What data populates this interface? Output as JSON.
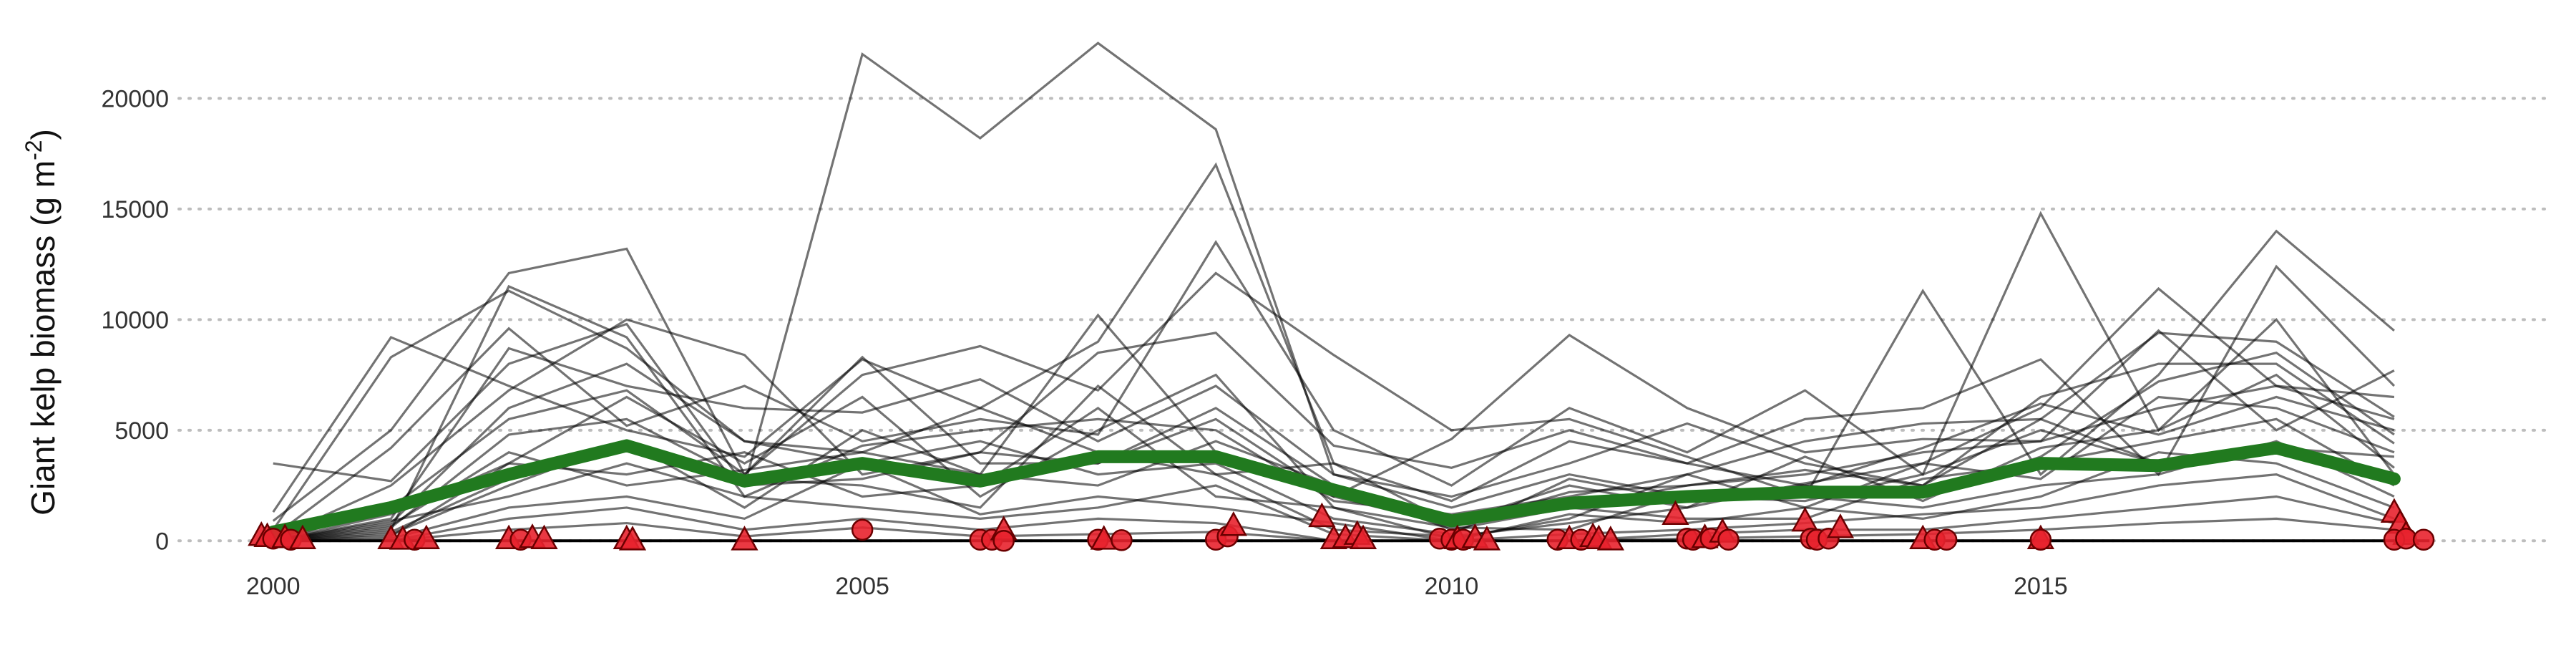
{
  "colors": {
    "background": "#ffffff",
    "gridline": "#bdbdbd",
    "site_line": "#000000",
    "mean_line": "#217a1f",
    "marker_fill": "#e8222e",
    "marker_stroke": "#6a0000",
    "zero_line": "#000000"
  },
  "chart_data": {
    "type": "line",
    "title": "",
    "xlabel": "",
    "ylabel": "Giant kelp biomass (g m",
    "ylabel_superscript": "-2",
    "ylabel_close": ")",
    "xlim": [
      1999.2,
      2019.3
    ],
    "ylim": [
      -800,
      23800
    ],
    "x_ticks": [
      2000,
      2005,
      2010,
      2015
    ],
    "x_tick_labels": [
      "2000",
      "2005",
      "2010",
      "2015"
    ],
    "y_ticks": [
      0,
      5000,
      10000,
      15000,
      20000
    ],
    "y_tick_labels": [
      "0",
      "5000",
      "10000",
      "15000",
      "20000"
    ],
    "grid": "horizontal dotted",
    "legend": "none",
    "years": [
      2000,
      2001,
      2002,
      2003,
      2004,
      2005,
      2006,
      2007,
      2008,
      2009,
      2010,
      2011,
      2012,
      2013,
      2014,
      2015,
      2016,
      2017,
      2018
    ],
    "mean_series": {
      "values": [
        400,
        1500,
        3000,
        4300,
        2700,
        3500,
        2700,
        3800,
        3800,
        2300,
        900,
        1700,
        2000,
        2200,
        2200,
        3500,
        3400,
        4200,
        2800
      ]
    },
    "site_series": [
      {
        "values": [
          3500,
          2700,
          8000,
          9800,
          2500,
          22000,
          18200,
          22500,
          18600,
          3000,
          1500,
          3000,
          2000,
          1800,
          3000,
          5000,
          3500,
          4000,
          3000
        ]
      },
      {
        "values": [
          1300,
          9200,
          7000,
          5000,
          3800,
          8200,
          6000,
          9000,
          17000,
          3500,
          800,
          2500,
          1500,
          2600,
          3500,
          6000,
          11400,
          7000,
          6500
        ]
      },
      {
        "values": [
          500,
          8300,
          11300,
          8700,
          4500,
          4000,
          3000,
          10200,
          4000,
          2000,
          4600,
          9300,
          6000,
          4000,
          4600,
          4500,
          9500,
          5000,
          7700
        ]
      },
      {
        "values": [
          900,
          5000,
          12100,
          13200,
          3000,
          7500,
          8800,
          6800,
          12100,
          8400,
          5000,
          5500,
          3800,
          2000,
          11300,
          3000,
          7500,
          14000,
          9500
        ]
      },
      {
        "values": [
          200,
          4200,
          9600,
          5200,
          7000,
          4500,
          5500,
          4800,
          13500,
          5000,
          2500,
          6000,
          4000,
          6800,
          3000,
          14800,
          5000,
          10000,
          3000
        ]
      },
      {
        "values": [
          100,
          2500,
          6800,
          10000,
          8400,
          3000,
          4000,
          8500,
          9400,
          4300,
          3300,
          5000,
          3500,
          5500,
          6000,
          8200,
          3000,
          12400,
          7000
        ]
      },
      {
        "values": [
          0,
          1000,
          8700,
          7000,
          6000,
          5800,
          7300,
          4500,
          7000,
          3000,
          2000,
          3500,
          5300,
          3500,
          2500,
          6500,
          8000,
          8000,
          4400
        ]
      },
      {
        "values": [
          0,
          500,
          11500,
          9200,
          2000,
          4300,
          5000,
          5500,
          5000,
          1800,
          1200,
          2000,
          3000,
          4500,
          5300,
          5500,
          9400,
          9000,
          5600
        ]
      },
      {
        "values": [
          0,
          1500,
          5500,
          6800,
          3000,
          8300,
          3500,
          3500,
          6000,
          2500,
          500,
          1500,
          2500,
          3000,
          4000,
          4500,
          6000,
          7000,
          5500
        ]
      },
      {
        "values": [
          0,
          800,
          6000,
          8000,
          4500,
          3500,
          4500,
          3000,
          3500,
          1000,
          300,
          2800,
          1800,
          2500,
          2000,
          3800,
          7200,
          8500,
          4800
        ]
      },
      {
        "values": [
          0,
          1200,
          3500,
          6500,
          3500,
          6500,
          2000,
          5000,
          7500,
          1500,
          100,
          1000,
          3000,
          1500,
          3500,
          2800,
          6500,
          6000,
          4000
        ]
      },
      {
        "values": [
          0,
          600,
          4800,
          5500,
          2800,
          2500,
          1500,
          7000,
          3000,
          500,
          200,
          800,
          1500,
          3800,
          1800,
          4200,
          5000,
          7500,
          3300
        ]
      },
      {
        "values": [
          0,
          300,
          2500,
          4500,
          1500,
          5000,
          3000,
          2500,
          4500,
          2500,
          1000,
          1500,
          1000,
          1000,
          2800,
          3500,
          4500,
          5500,
          2500
        ]
      },
      {
        "values": [
          0,
          200,
          3500,
          3000,
          4000,
          2000,
          2500,
          6000,
          2000,
          1500,
          600,
          500,
          2200,
          2000,
          1500,
          2500,
          3000,
          4500,
          2000
        ]
      },
      {
        "values": [
          0,
          900,
          2000,
          3500,
          2000,
          1500,
          1000,
          1500,
          2500,
          300,
          0,
          1200,
          800,
          1500,
          1000,
          2000,
          4000,
          3500,
          1500
        ]
      },
      {
        "values": [
          0,
          100,
          1500,
          2000,
          1000,
          3500,
          1200,
          2000,
          1500,
          800,
          0,
          300,
          500,
          800,
          1200,
          1500,
          2500,
          3000,
          1000
        ]
      },
      {
        "values": [
          0,
          0,
          1000,
          1500,
          500,
          1000,
          500,
          1000,
          800,
          0,
          0,
          0,
          300,
          500,
          500,
          1000,
          1500,
          2000,
          800
        ]
      },
      {
        "values": [
          0,
          400,
          2800,
          4200,
          2500,
          2800,
          4000,
          3500,
          5500,
          2000,
          700,
          2200,
          2500,
          3200,
          2500,
          5500,
          3500,
          4200,
          3800
        ]
      },
      {
        "values": [
          0,
          700,
          4000,
          2500,
          3200,
          4000,
          6000,
          4000,
          3000,
          3500,
          1800,
          4500,
          3500,
          2500,
          4200,
          6200,
          4800,
          6500,
          5000
        ]
      },
      {
        "values": [
          0,
          0,
          500,
          800,
          200,
          600,
          200,
          300,
          400,
          0,
          0,
          0,
          100,
          200,
          300,
          500,
          800,
          1000,
          500
        ]
      }
    ],
    "markers": [
      {
        "x": 1999.9,
        "y": 250,
        "shape": "triangle"
      },
      {
        "x": 1999.95,
        "y": 200,
        "shape": "triangle"
      },
      {
        "x": 2000.0,
        "y": 100,
        "shape": "circle"
      },
      {
        "x": 2000.1,
        "y": 150,
        "shape": "triangle"
      },
      {
        "x": 2000.15,
        "y": 50,
        "shape": "circle"
      },
      {
        "x": 2000.25,
        "y": 100,
        "shape": "triangle"
      },
      {
        "x": 2001.0,
        "y": 100,
        "shape": "triangle"
      },
      {
        "x": 2001.1,
        "y": 80,
        "shape": "triangle"
      },
      {
        "x": 2001.2,
        "y": 50,
        "shape": "circle"
      },
      {
        "x": 2001.3,
        "y": 100,
        "shape": "triangle"
      },
      {
        "x": 2002.0,
        "y": 100,
        "shape": "triangle"
      },
      {
        "x": 2002.1,
        "y": 50,
        "shape": "circle"
      },
      {
        "x": 2002.2,
        "y": 150,
        "shape": "triangle"
      },
      {
        "x": 2002.3,
        "y": 100,
        "shape": "triangle"
      },
      {
        "x": 2003.0,
        "y": 100,
        "shape": "triangle"
      },
      {
        "x": 2003.05,
        "y": 50,
        "shape": "triangle"
      },
      {
        "x": 2004.0,
        "y": 50,
        "shape": "triangle"
      },
      {
        "x": 2005.0,
        "y": 500,
        "shape": "circle"
      },
      {
        "x": 2006.0,
        "y": 50,
        "shape": "circle"
      },
      {
        "x": 2006.1,
        "y": 50,
        "shape": "circle"
      },
      {
        "x": 2006.2,
        "y": 500,
        "shape": "triangle"
      },
      {
        "x": 2006.2,
        "y": 0,
        "shape": "circle"
      },
      {
        "x": 2007.0,
        "y": 50,
        "shape": "circle"
      },
      {
        "x": 2007.05,
        "y": 80,
        "shape": "triangle"
      },
      {
        "x": 2007.2,
        "y": 30,
        "shape": "circle"
      },
      {
        "x": 2008.0,
        "y": 50,
        "shape": "circle"
      },
      {
        "x": 2008.1,
        "y": 200,
        "shape": "circle"
      },
      {
        "x": 2008.15,
        "y": 700,
        "shape": "triangle"
      },
      {
        "x": 2008.9,
        "y": 1100,
        "shape": "triangle"
      },
      {
        "x": 2009.0,
        "y": 100,
        "shape": "triangle"
      },
      {
        "x": 2009.1,
        "y": 150,
        "shape": "triangle"
      },
      {
        "x": 2009.2,
        "y": 300,
        "shape": "triangle"
      },
      {
        "x": 2009.25,
        "y": 100,
        "shape": "triangle"
      },
      {
        "x": 2009.9,
        "y": 100,
        "shape": "circle"
      },
      {
        "x": 2010.0,
        "y": 50,
        "shape": "circle"
      },
      {
        "x": 2010.05,
        "y": 100,
        "shape": "triangle"
      },
      {
        "x": 2010.1,
        "y": 50,
        "shape": "circle"
      },
      {
        "x": 2010.2,
        "y": 150,
        "shape": "triangle"
      },
      {
        "x": 2010.3,
        "y": 50,
        "shape": "triangle"
      },
      {
        "x": 2010.9,
        "y": 50,
        "shape": "circle"
      },
      {
        "x": 2011.0,
        "y": 100,
        "shape": "triangle"
      },
      {
        "x": 2011.1,
        "y": 50,
        "shape": "circle"
      },
      {
        "x": 2011.2,
        "y": 200,
        "shape": "triangle"
      },
      {
        "x": 2011.25,
        "y": 100,
        "shape": "triangle"
      },
      {
        "x": 2011.35,
        "y": 50,
        "shape": "triangle"
      },
      {
        "x": 2011.9,
        "y": 1200,
        "shape": "triangle"
      },
      {
        "x": 2012.0,
        "y": 100,
        "shape": "circle"
      },
      {
        "x": 2012.05,
        "y": 50,
        "shape": "circle"
      },
      {
        "x": 2012.15,
        "y": 150,
        "shape": "triangle"
      },
      {
        "x": 2012.2,
        "y": 100,
        "shape": "circle"
      },
      {
        "x": 2012.3,
        "y": 400,
        "shape": "triangle"
      },
      {
        "x": 2012.35,
        "y": 50,
        "shape": "circle"
      },
      {
        "x": 2013.0,
        "y": 900,
        "shape": "triangle"
      },
      {
        "x": 2013.05,
        "y": 100,
        "shape": "circle"
      },
      {
        "x": 2013.1,
        "y": 50,
        "shape": "circle"
      },
      {
        "x": 2013.2,
        "y": 100,
        "shape": "circle"
      },
      {
        "x": 2013.3,
        "y": 600,
        "shape": "triangle"
      },
      {
        "x": 2014.0,
        "y": 100,
        "shape": "triangle"
      },
      {
        "x": 2014.1,
        "y": 50,
        "shape": "circle"
      },
      {
        "x": 2014.2,
        "y": 50,
        "shape": "circle"
      },
      {
        "x": 2015.0,
        "y": 100,
        "shape": "triangle"
      },
      {
        "x": 2015.0,
        "y": 50,
        "shape": "circle"
      },
      {
        "x": 2018.0,
        "y": 1300,
        "shape": "triangle"
      },
      {
        "x": 2018.05,
        "y": 800,
        "shape": "triangle"
      },
      {
        "x": 2018.1,
        "y": 300,
        "shape": "triangle"
      },
      {
        "x": 2018.0,
        "y": 50,
        "shape": "circle"
      },
      {
        "x": 2018.1,
        "y": 100,
        "shape": "circle"
      },
      {
        "x": 2018.25,
        "y": 50,
        "shape": "circle"
      }
    ]
  }
}
